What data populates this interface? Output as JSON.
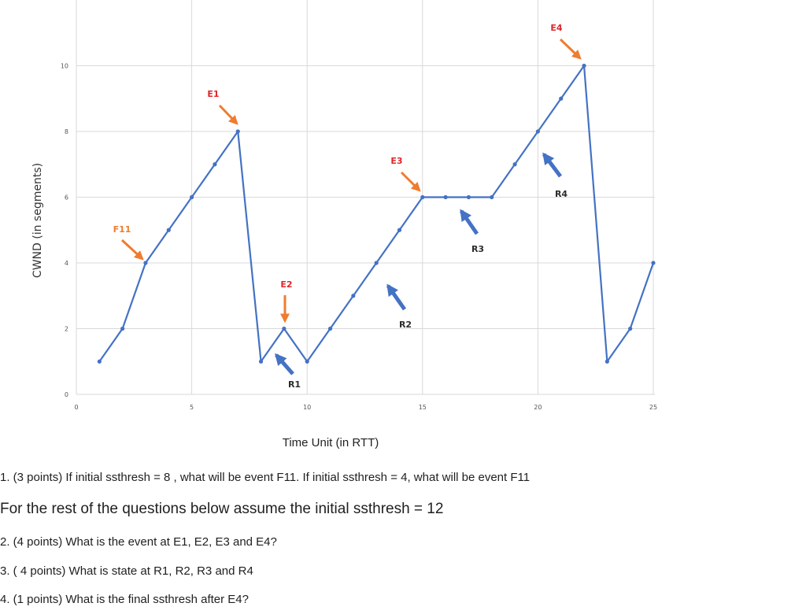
{
  "chart_data": {
    "type": "line",
    "xlabel": "Time Unit (in RTT)",
    "ylabel": "CWND (in segments)",
    "xlim": [
      0,
      25
    ],
    "ylim": [
      0,
      12
    ],
    "xticks": [
      0,
      5,
      10,
      15,
      20,
      25
    ],
    "yticks": [
      0,
      2,
      4,
      6,
      8,
      10
    ],
    "grid": true,
    "color": "#4472c4",
    "series": [
      {
        "x": [
          1,
          2,
          3,
          4,
          5,
          6,
          7,
          8,
          9,
          10,
          11,
          12,
          13,
          14,
          15,
          16,
          17,
          18,
          19,
          20,
          21,
          22,
          23,
          24,
          25
        ],
        "y": [
          1,
          2,
          4,
          5,
          6,
          7,
          8,
          1,
          2,
          1,
          2,
          3,
          4,
          5,
          6,
          6,
          6,
          6,
          7,
          8,
          9,
          10,
          1,
          2,
          4
        ]
      }
    ],
    "annotations": [
      {
        "label": "F11",
        "color": "#ee7d31",
        "arrow_color": "#ee7d31",
        "target": [
          3,
          4
        ]
      },
      {
        "label": "E1",
        "color": "#e0262b",
        "arrow_color": "#ee7d31",
        "target": [
          7,
          8
        ]
      },
      {
        "label": "E2",
        "color": "#e0262b",
        "arrow_color": "#ee7d31",
        "target": [
          9,
          2
        ]
      },
      {
        "label": "E3",
        "color": "#e0262b",
        "arrow_color": "#ee7d31",
        "target": [
          15,
          6
        ]
      },
      {
        "label": "E4",
        "color": "#e0262b",
        "arrow_color": "#ee7d31",
        "target": [
          22,
          10
        ]
      },
      {
        "label": "R1",
        "color": "#2b2b2b",
        "arrow_color": "#4472c4",
        "target": [
          9,
          1
        ]
      },
      {
        "label": "R2",
        "color": "#2b2b2b",
        "arrow_color": "#4472c4",
        "target": [
          13.5,
          3.4
        ]
      },
      {
        "label": "R3",
        "color": "#2b2b2b",
        "arrow_color": "#4472c4",
        "target": [
          16.7,
          5.6
        ]
      },
      {
        "label": "R4",
        "color": "#2b2b2b",
        "arrow_color": "#4472c4",
        "target": [
          20.2,
          7.5
        ]
      }
    ]
  },
  "questions": {
    "q1": "1. (3 points) If initial ssthresh = 8 , what will be event F11. If initial ssthresh  = 4, what will be event F11",
    "note": "For the rest of the questions below assume the initial ssthresh = 12",
    "q2": "2. (4 points) What is the event at E1, E2, E3 and E4?",
    "q3": "3. ( 4 points) What is state at R1, R2, R3 and R4",
    "q4": "4.  (1 points) What is the final ssthresh after E4?"
  }
}
